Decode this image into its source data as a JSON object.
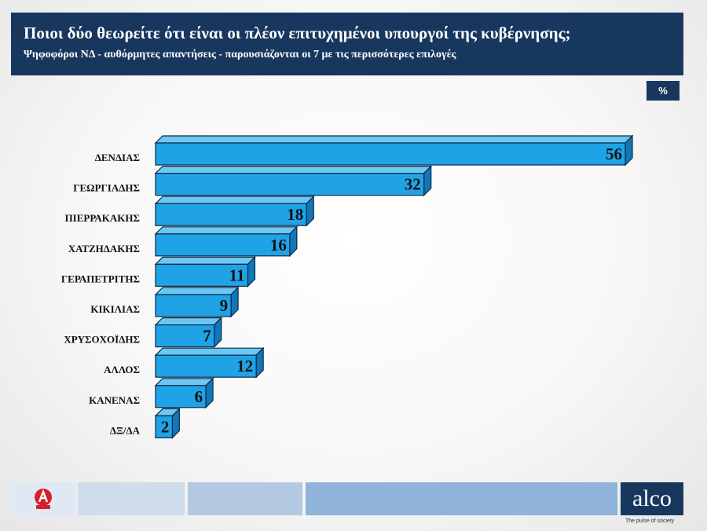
{
  "header": {
    "title": "Ποιοι δύο θεωρείτε ότι είναι οι πλέον επιτυχημένοι υπουργοί της κυβέρνησης;",
    "subtitle": "Ψηφοφόροι ΝΔ - αυθόρμητες απαντήσεις - παρουσιάζονται οι 7 με τις περισσότερες επιλογές"
  },
  "unit_badge": "%",
  "footer": {
    "brand": "alco",
    "tagline": "The pulse of society"
  },
  "colors": {
    "header_bg": "#17375e",
    "bar_front": "#1fa3e6",
    "bar_top": "#6cc8f2",
    "bar_side": "#1177b8",
    "outline": "#0d2a48"
  },
  "chart_data": {
    "type": "bar",
    "orientation": "horizontal",
    "title": "Ποιοι δύο θεωρείτε ότι είναι οι πλέον επιτυχημένοι υπουργοί της κυβέρνησης;",
    "subtitle": "Ψηφοφόροι ΝΔ - αυθόρμητες απαντήσεις - παρουσιάζονται οι 7 με τις περισσότερες επιλογές",
    "unit": "%",
    "categories": [
      "ΔΕΝΔΙΑΣ",
      "ΓΕΩΡΓΙΑΔΗΣ",
      "ΠΙΕΡΡΑΚΑΚΗΣ",
      "ΧΑΤΖΗΔΑΚΗΣ",
      "ΓΕΡΑΠΕΤΡΙΤΗΣ",
      "ΚΙΚΙΛΙΑΣ",
      "ΧΡΥΣΟΧΟΪΔΗΣ",
      "ΑΛΛΟΣ",
      "ΚΑΝΕΝΑΣ",
      "ΔΞ/ΔΑ"
    ],
    "values": [
      56,
      32,
      18,
      16,
      11,
      9,
      7,
      12,
      6,
      2
    ],
    "xlim": [
      0,
      56
    ],
    "grid": false,
    "legend": "none"
  }
}
